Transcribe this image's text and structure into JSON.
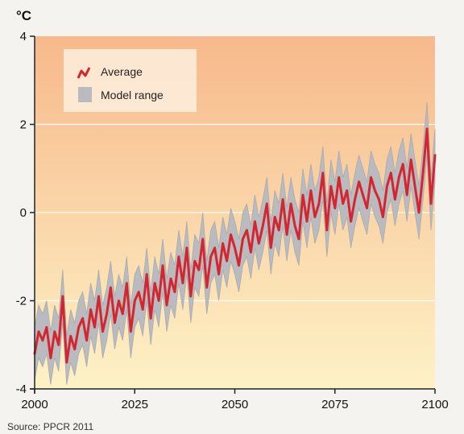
{
  "chart_data": {
    "type": "line",
    "title": "",
    "unit_label": "°C",
    "xlabel": "",
    "ylabel": "°C",
    "xlim": [
      2000,
      2100
    ],
    "ylim": [
      -4,
      4
    ],
    "x_ticks": [
      2000,
      2025,
      2050,
      2075,
      2100
    ],
    "y_ticks": [
      4,
      2,
      0,
      -2,
      -4
    ],
    "grid": "horizontal",
    "legend_position": "top-left",
    "background_gradient": [
      "#f7b98b",
      "#fdf2c6"
    ],
    "colors": {
      "average": "#d22630",
      "range": "#b9bbbf",
      "range_edge": "#a8aaae"
    },
    "legend": {
      "average_label": "Average",
      "range_label": "Model range"
    },
    "source": "Source: PPCR 2011",
    "x": [
      2000,
      2001,
      2002,
      2003,
      2004,
      2005,
      2006,
      2007,
      2008,
      2009,
      2010,
      2011,
      2012,
      2013,
      2014,
      2015,
      2016,
      2017,
      2018,
      2019,
      2020,
      2021,
      2022,
      2023,
      2024,
      2025,
      2026,
      2027,
      2028,
      2029,
      2030,
      2031,
      2032,
      2033,
      2034,
      2035,
      2036,
      2037,
      2038,
      2039,
      2040,
      2041,
      2042,
      2043,
      2044,
      2045,
      2046,
      2047,
      2048,
      2049,
      2050,
      2051,
      2052,
      2053,
      2054,
      2055,
      2056,
      2057,
      2058,
      2059,
      2060,
      2061,
      2062,
      2063,
      2064,
      2065,
      2066,
      2067,
      2068,
      2069,
      2070,
      2071,
      2072,
      2073,
      2074,
      2075,
      2076,
      2077,
      2078,
      2079,
      2080,
      2081,
      2082,
      2083,
      2084,
      2085,
      2086,
      2087,
      2088,
      2089,
      2090,
      2091,
      2092,
      2093,
      2094,
      2095,
      2096,
      2097,
      2098,
      2099,
      2100
    ],
    "series": [
      {
        "name": "Average",
        "values": [
          -3.2,
          -2.7,
          -2.9,
          -2.6,
          -3.3,
          -2.7,
          -3.0,
          -1.9,
          -3.4,
          -2.8,
          -3.1,
          -2.6,
          -2.4,
          -2.9,
          -2.2,
          -2.6,
          -1.9,
          -2.7,
          -2.3,
          -1.7,
          -2.5,
          -2.0,
          -2.3,
          -1.6,
          -2.7,
          -2.0,
          -1.8,
          -2.2,
          -1.4,
          -2.4,
          -1.6,
          -2.0,
          -1.2,
          -2.1,
          -1.5,
          -1.8,
          -1.0,
          -1.6,
          -0.8,
          -1.9,
          -1.1,
          -1.3,
          -0.6,
          -1.7,
          -1.0,
          -0.8,
          -1.4,
          -0.7,
          -1.1,
          -0.5,
          -0.8,
          -1.2,
          -0.6,
          -0.4,
          -0.9,
          -0.2,
          -0.7,
          -0.3,
          0.2,
          -0.8,
          -0.1,
          -0.4,
          0.3,
          -0.5,
          0.2,
          -0.3,
          -0.6,
          0.4,
          -0.2,
          0.5,
          -0.1,
          0.2,
          0.9,
          -0.4,
          0.6,
          0.1,
          0.8,
          0.2,
          0.5,
          -0.2,
          0.3,
          0.7,
          0.4,
          0.1,
          0.8,
          0.5,
          0.3,
          -0.1,
          0.6,
          0.9,
          0.3,
          0.8,
          1.1,
          0.4,
          1.2,
          0.6,
          0.0,
          0.9,
          1.9,
          0.2,
          1.3
        ]
      },
      {
        "name": "Model range",
        "low": [
          -3.8,
          -3.3,
          -3.5,
          -3.2,
          -3.9,
          -3.3,
          -3.6,
          -2.5,
          -3.9,
          -3.4,
          -3.7,
          -3.2,
          -3.0,
          -3.5,
          -2.8,
          -3.2,
          -2.5,
          -3.3,
          -2.9,
          -2.3,
          -3.1,
          -2.6,
          -2.9,
          -2.2,
          -3.3,
          -2.6,
          -2.4,
          -2.8,
          -2.0,
          -3.0,
          -2.2,
          -2.6,
          -1.8,
          -2.7,
          -2.1,
          -2.4,
          -1.6,
          -2.2,
          -1.4,
          -2.5,
          -1.7,
          -1.9,
          -1.2,
          -2.3,
          -1.6,
          -1.4,
          -2.0,
          -1.3,
          -1.7,
          -1.1,
          -1.4,
          -1.8,
          -1.2,
          -1.0,
          -1.5,
          -0.8,
          -1.3,
          -0.9,
          -0.4,
          -1.4,
          -0.7,
          -1.0,
          -0.3,
          -1.1,
          -0.4,
          -0.9,
          -1.2,
          -0.2,
          -0.8,
          -0.1,
          -0.7,
          -0.4,
          0.3,
          -1.0,
          0.0,
          -0.5,
          0.2,
          -0.4,
          -0.1,
          -0.8,
          -0.3,
          0.1,
          -0.2,
          -0.5,
          0.2,
          -0.1,
          -0.3,
          -0.7,
          0.0,
          0.3,
          -0.3,
          0.2,
          0.5,
          -0.2,
          0.6,
          0.0,
          -0.6,
          0.3,
          1.3,
          -0.4,
          0.7
        ],
        "high": [
          -2.6,
          -2.1,
          -2.3,
          -2.0,
          -2.7,
          -2.1,
          -2.4,
          -1.3,
          -2.8,
          -2.2,
          -2.5,
          -2.0,
          -1.8,
          -2.3,
          -1.6,
          -2.0,
          -1.3,
          -2.1,
          -1.7,
          -1.1,
          -1.9,
          -1.4,
          -1.7,
          -1.0,
          -2.1,
          -1.4,
          -1.2,
          -1.6,
          -0.8,
          -1.8,
          -1.0,
          -1.4,
          -0.6,
          -1.5,
          -0.9,
          -1.2,
          -0.4,
          -1.0,
          -0.2,
          -1.3,
          -0.5,
          -0.7,
          0.0,
          -1.1,
          -0.4,
          -0.2,
          -0.8,
          -0.1,
          -0.5,
          0.1,
          -0.2,
          -0.6,
          0.0,
          0.2,
          -0.3,
          0.4,
          -0.1,
          0.3,
          0.8,
          -0.2,
          0.5,
          0.2,
          0.9,
          0.1,
          0.8,
          0.3,
          0.0,
          1.0,
          0.4,
          1.1,
          0.5,
          0.8,
          1.5,
          0.2,
          1.2,
          0.7,
          1.4,
          0.8,
          1.1,
          0.4,
          0.9,
          1.3,
          1.0,
          0.7,
          1.4,
          1.1,
          0.9,
          0.5,
          1.2,
          1.5,
          0.9,
          1.4,
          1.7,
          1.0,
          1.8,
          1.2,
          0.6,
          1.5,
          2.5,
          0.8,
          1.9
        ]
      }
    ]
  }
}
